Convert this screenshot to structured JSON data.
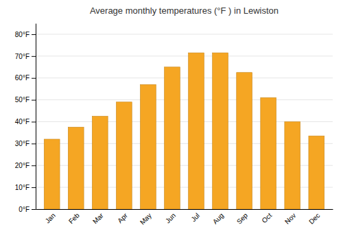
{
  "chart_data": {
    "type": "bar",
    "title": "Average monthly temperatures (°F ) in Lewiston",
    "categories": [
      "Jan",
      "Feb",
      "Mar",
      "Apr",
      "May",
      "Jun",
      "Jul",
      "Aug",
      "Sep",
      "Oct",
      "Nov",
      "Dec"
    ],
    "values": [
      32,
      37.5,
      42.5,
      49,
      57,
      65,
      71.5,
      71.5,
      62.5,
      51,
      40,
      33.5
    ],
    "color": "#F5A623",
    "ylim": [
      0,
      85
    ],
    "yticks": [
      {
        "value": 0,
        "label": "0°F"
      },
      {
        "value": 10,
        "label": "10°F"
      },
      {
        "value": 20,
        "label": "20°F"
      },
      {
        "value": 30,
        "label": "30°F"
      },
      {
        "value": 40,
        "label": "40°F"
      },
      {
        "value": 50,
        "label": "50°F"
      },
      {
        "value": 60,
        "label": "60°F"
      },
      {
        "value": 70,
        "label": "70°F"
      },
      {
        "value": 80,
        "label": "80°F"
      }
    ],
    "grid": true
  }
}
